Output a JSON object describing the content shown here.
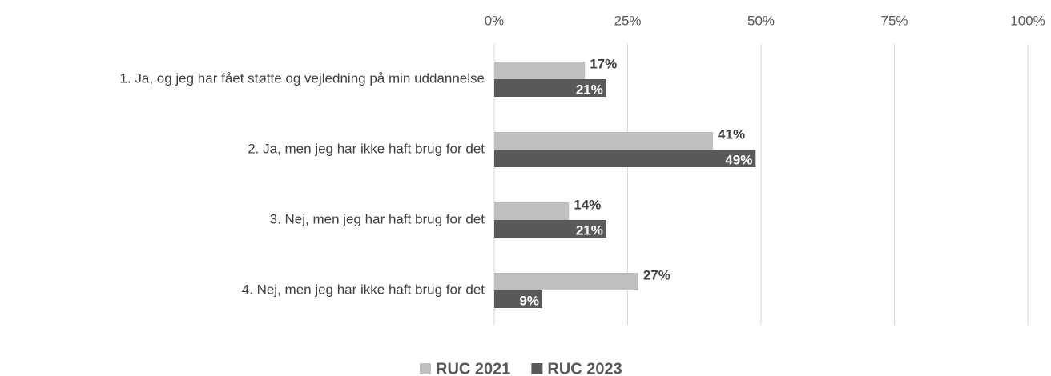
{
  "chart_data": {
    "type": "bar",
    "orientation": "horizontal",
    "categories": [
      "1. Ja, og jeg har fået støtte og vejledning på min uddannelse",
      "2. Ja, men jeg har ikke haft brug for det",
      "3. Nej, men jeg har haft brug for det",
      "4. Nej, men jeg har ikke haft brug for det"
    ],
    "series": [
      {
        "name": "RUC 2021",
        "color": "#bfbfbf",
        "values": [
          17,
          41,
          14,
          27
        ],
        "value_labels": [
          "17%",
          "41%",
          "14%",
          "27%"
        ]
      },
      {
        "name": "RUC 2023",
        "color": "#595959",
        "values": [
          21,
          49,
          21,
          9
        ],
        "value_labels": [
          "21%",
          "49%",
          "21%",
          "9%"
        ]
      }
    ],
    "xlim": [
      0,
      100
    ],
    "xticks": [
      {
        "value": 0,
        "label": "0%"
      },
      {
        "value": 25,
        "label": "25%"
      },
      {
        "value": 50,
        "label": "50%"
      },
      {
        "value": 75,
        "label": "75%"
      },
      {
        "value": 100,
        "label": "100%"
      }
    ],
    "grid": true,
    "legend": "bottom"
  }
}
